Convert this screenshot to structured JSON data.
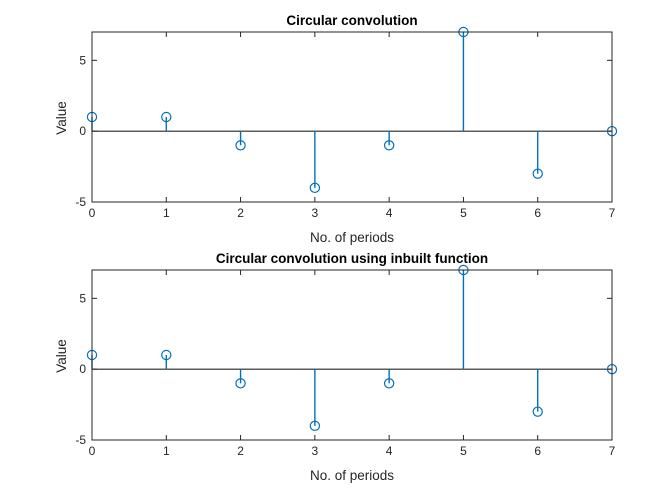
{
  "chart_data": [
    {
      "type": "stem",
      "title": "Circular convolution",
      "xlabel": "No. of periods",
      "ylabel": "Value",
      "xlim": [
        0,
        7
      ],
      "ylim": [
        -5,
        7
      ],
      "xticks": [
        0,
        1,
        2,
        3,
        4,
        5,
        6,
        7
      ],
      "yticks": [
        -5,
        0,
        5
      ],
      "grid": false,
      "color": "#0072BD",
      "x": [
        0,
        1,
        2,
        3,
        4,
        5,
        6,
        7
      ],
      "y": [
        1,
        1,
        -1,
        -4,
        -1,
        7,
        -3,
        0
      ]
    },
    {
      "type": "stem",
      "title": "Circular convolution using inbuilt function",
      "xlabel": "No. of periods",
      "ylabel": "Value",
      "xlim": [
        0,
        7
      ],
      "ylim": [
        -5,
        7
      ],
      "xticks": [
        0,
        1,
        2,
        3,
        4,
        5,
        6,
        7
      ],
      "yticks": [
        -5,
        0,
        5
      ],
      "grid": false,
      "color": "#0072BD",
      "x": [
        0,
        1,
        2,
        3,
        4,
        5,
        6,
        7
      ],
      "y": [
        1,
        1,
        -1,
        -4,
        -1,
        7,
        -3,
        0
      ]
    }
  ]
}
